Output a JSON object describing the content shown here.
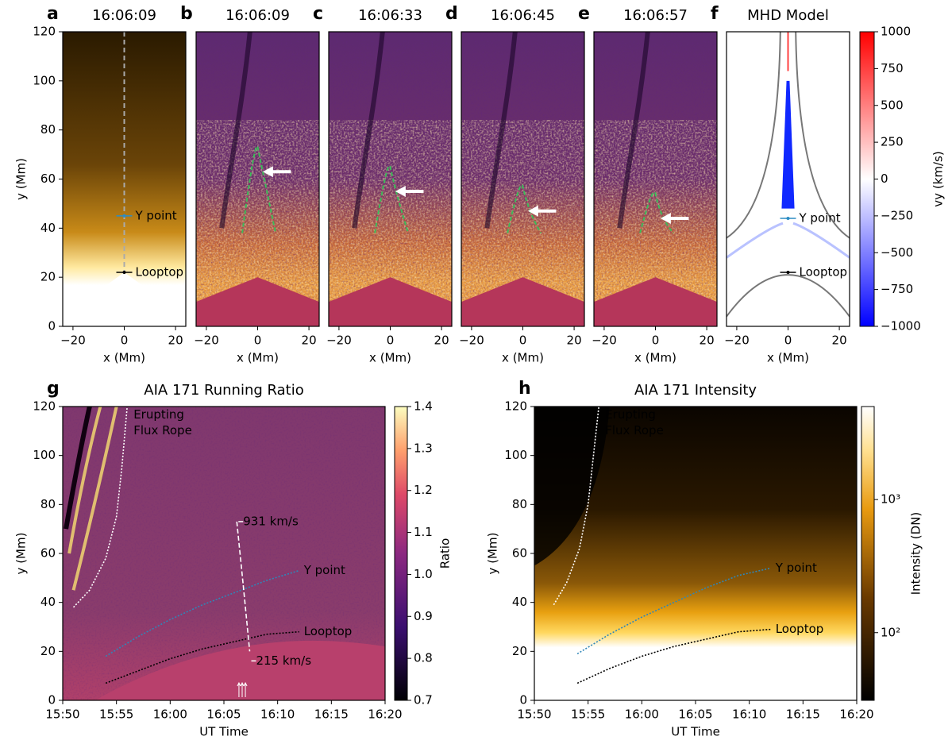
{
  "chart_data": [
    {
      "type": "image",
      "panel": "a",
      "title": "16:06:09",
      "xlabel": "x (Mm)",
      "ylabel": "y (Mm)",
      "xlim": [
        -24,
        24
      ],
      "ylim": [
        0,
        120
      ],
      "xticks": [
        {
          "value": -20,
          "label": "−20"
        },
        0,
        20
      ],
      "yticks": [
        0,
        20,
        40,
        60,
        80,
        100,
        120
      ],
      "annotations": [
        {
          "text": "Y point",
          "x": 0,
          "y": 45,
          "color": "#2b8cc4"
        },
        {
          "text": "Looptop",
          "x": 0,
          "y": 22,
          "color": "#000000"
        }
      ]
    },
    {
      "type": "image",
      "panel": "b",
      "title": "16:06:09",
      "xlabel": "x (Mm)",
      "xlim": [
        -24,
        24
      ],
      "ylim": [
        0,
        120
      ],
      "xticks": [
        {
          "value": -20,
          "label": "−20"
        },
        0,
        20
      ]
    },
    {
      "type": "image",
      "panel": "c",
      "title": "16:06:33",
      "xlabel": "x (Mm)",
      "xlim": [
        -24,
        24
      ],
      "ylim": [
        0,
        120
      ],
      "xticks": [
        {
          "value": -20,
          "label": "−20"
        },
        0,
        20
      ]
    },
    {
      "type": "image",
      "panel": "d",
      "title": "16:06:45",
      "xlabel": "x (Mm)",
      "xlim": [
        -24,
        24
      ],
      "ylim": [
        0,
        120
      ],
      "xticks": [
        {
          "value": -20,
          "label": "−20"
        },
        0,
        20
      ]
    },
    {
      "type": "image",
      "panel": "e",
      "title": "16:06:57",
      "xlabel": "x (Mm)",
      "xlim": [
        -24,
        24
      ],
      "ylim": [
        0,
        120
      ],
      "xticks": [
        {
          "value": -20,
          "label": "−20"
        },
        0,
        20
      ]
    },
    {
      "type": "image",
      "panel": "f",
      "title": "MHD Model",
      "xlabel": "x (Mm)",
      "xlim": [
        -24,
        24
      ],
      "ylim": [
        0,
        120
      ],
      "xticks": [
        {
          "value": -20,
          "label": "−20"
        },
        0,
        20
      ],
      "annotations": [
        {
          "text": "Y point",
          "x": 0,
          "y": 44,
          "color": "#2b8cc4"
        },
        {
          "text": "Looptop",
          "x": 0,
          "y": 22,
          "color": "#000000"
        }
      ],
      "colorbar": {
        "label": "vy (km/s)",
        "clim": [
          -1000,
          1000
        ],
        "ticks": [
          1000,
          750,
          500,
          250,
          0,
          {
            "value": -250,
            "label": "−250"
          },
          {
            "value": -500,
            "label": "−500"
          },
          {
            "value": -750,
            "label": "−750"
          },
          {
            "value": -1000,
            "label": "−1000"
          }
        ]
      }
    },
    {
      "type": "line",
      "panel": "g",
      "title": "AIA 171 Running Ratio",
      "xlabel": "UT Time",
      "ylabel": "y (Mm)",
      "xlim": [
        950,
        980
      ],
      "ylim": [
        0,
        120
      ],
      "xticks": [
        {
          "value": 950,
          "label": "15:50"
        },
        {
          "value": 955,
          "label": "15:55"
        },
        {
          "value": 960,
          "label": "16:00"
        },
        {
          "value": 965,
          "label": "16:05"
        },
        {
          "value": 970,
          "label": "16:10"
        },
        {
          "value": 975,
          "label": "16:15"
        },
        {
          "value": 980,
          "label": "16:20"
        }
      ],
      "yticks": [
        0,
        20,
        40,
        60,
        80,
        100,
        120
      ],
      "series": [
        {
          "name": "Erupting Flux Rope",
          "color": "#ffffff",
          "x": [
            951,
            952.5,
            954,
            955,
            955.5,
            956
          ],
          "values": [
            38,
            45,
            58,
            75,
            95,
            120
          ]
        },
        {
          "name": "Y point",
          "color": "#2f86b8",
          "x": [
            954,
            957,
            960,
            963,
            966,
            969,
            972
          ],
          "values": [
            18,
            26,
            33,
            39,
            44,
            49,
            53
          ]
        },
        {
          "name": "Looptop",
          "color": "#000000",
          "x": [
            954,
            957,
            960,
            963,
            966,
            969,
            972
          ],
          "values": [
            7,
            12,
            17,
            21,
            24,
            27,
            28
          ]
        },
        {
          "name": "931 km/s",
          "color": "#ffffff",
          "x": [
            966.2,
            966.5,
            966.8
          ],
          "values": [
            73,
            60,
            47
          ]
        },
        {
          "name": "215 km/s",
          "color": "#ffffff",
          "x": [
            966.8,
            967.4
          ],
          "values": [
            47,
            20
          ]
        }
      ],
      "colorbar": {
        "label": "Ratio",
        "clim": [
          0.7,
          1.4
        ],
        "ticks": [
          0.7,
          0.8,
          0.9,
          {
            "value": 1,
            "label": "1.0"
          },
          1.1,
          1.2,
          1.3,
          1.4
        ]
      }
    },
    {
      "type": "line",
      "panel": "h",
      "title": "AIA 171 Intensity",
      "xlabel": "UT Time",
      "ylabel": "y (Mm)",
      "xlim": [
        950,
        980
      ],
      "ylim": [
        0,
        120
      ],
      "xticks": [
        {
          "value": 950,
          "label": "15:50"
        },
        {
          "value": 955,
          "label": "15:55"
        },
        {
          "value": 960,
          "label": "16:00"
        },
        {
          "value": 965,
          "label": "16:05"
        },
        {
          "value": 970,
          "label": "16:10"
        },
        {
          "value": 975,
          "label": "16:15"
        },
        {
          "value": 980,
          "label": "16:20"
        }
      ],
      "yticks": [
        0,
        20,
        40,
        60,
        80,
        100,
        120
      ],
      "series": [
        {
          "name": "Erupting Flux Rope",
          "color": "#ffffff",
          "x": [
            951.8,
            953,
            954.2,
            955,
            955.5,
            956
          ],
          "values": [
            39,
            48,
            62,
            80,
            100,
            120
          ]
        },
        {
          "name": "Y point",
          "color": "#2f86b8",
          "x": [
            954,
            957,
            960,
            963,
            966,
            969,
            972
          ],
          "values": [
            19,
            27,
            34,
            40,
            46,
            51,
            54
          ]
        },
        {
          "name": "Looptop",
          "color": "#000000",
          "x": [
            954,
            957,
            960,
            963,
            966,
            969,
            972
          ],
          "values": [
            7,
            13,
            18,
            22,
            25,
            28,
            29
          ]
        }
      ],
      "colorbar": {
        "label": "Intensity (DN)",
        "log": true,
        "clim": [
          31,
          5000
        ],
        "ticks": [
          {
            "value": 100,
            "label": "10²"
          },
          {
            "value": 1000,
            "label": "10³"
          }
        ]
      }
    }
  ]
}
